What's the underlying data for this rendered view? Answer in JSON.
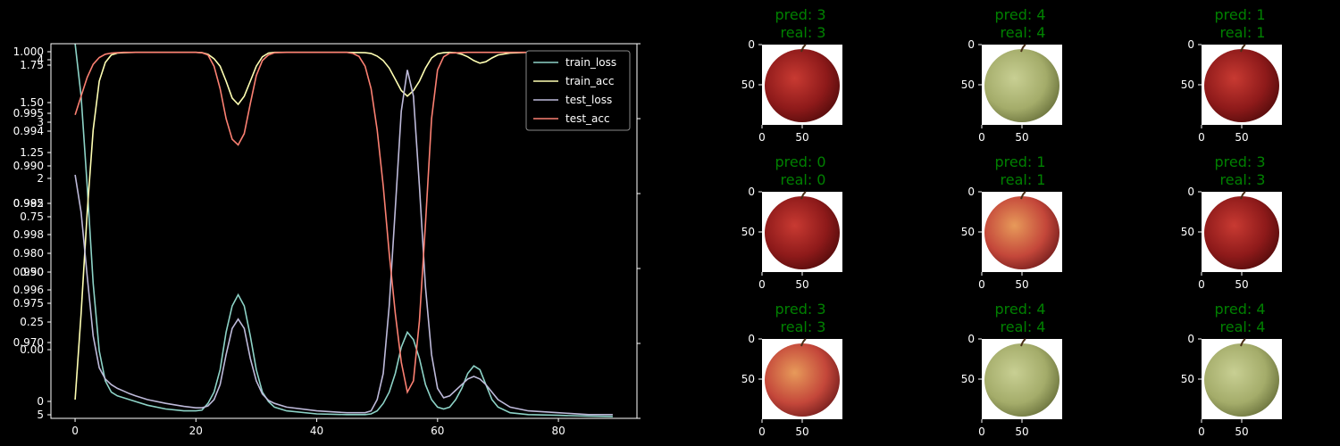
{
  "chart_data": [
    {
      "type": "line",
      "title": "",
      "xlabel": "",
      "ylabel": "",
      "xlim": [
        -4,
        93
      ],
      "xticks": [
        0,
        20,
        40,
        60,
        80
      ],
      "right_axis": {
        "ylim": [
          0.0,
          1.0
        ],
        "ticks": [
          "0.0",
          "0.2",
          "0.4",
          "0.6",
          "0.8",
          "1.0"
        ]
      },
      "overlapping_left_tick_labels": [
        [
          "1.75",
          73.3
        ],
        [
          "1.000",
          0
        ],
        [
          "1.50",
          140.7
        ],
        [
          "0.995",
          0
        ],
        [
          "1.25",
          208
        ],
        [
          "0.990",
          0
        ],
        [
          "0.985",
          0
        ],
        [
          "0.75",
          342.7
        ],
        [
          "0.980",
          0
        ],
        [
          "0.50",
          410
        ],
        [
          "0.975",
          0
        ],
        [
          "0.25",
          477.3
        ],
        [
          "0.970",
          0
        ],
        [
          "0.00",
          544.7
        ],
        [
          "0",
          0
        ],
        [
          "5",
          0
        ],
        [
          "4",
          0
        ],
        [
          "3",
          0
        ],
        [
          "2",
          0
        ],
        [
          "0.998",
          0
        ],
        [
          "0.996",
          0
        ],
        [
          "0.994",
          0
        ],
        [
          "0.992",
          0
        ],
        [
          "0.990",
          0
        ]
      ],
      "legend": {
        "placement": "top-right",
        "entries": [
          "train_loss",
          "train_acc",
          "test_loss",
          "test_acc"
        ]
      },
      "grid": false,
      "series": [
        {
          "name": "train_loss",
          "color": "#8dd3c7",
          "x": [
            0,
            1,
            2,
            3,
            4,
            5,
            6,
            7,
            8,
            10,
            12,
            15,
            18,
            20,
            21,
            22,
            23,
            24,
            25,
            26,
            27,
            28,
            29,
            30,
            31,
            32,
            33,
            35,
            40,
            45,
            48,
            49,
            50,
            51,
            52,
            53,
            54,
            55,
            56,
            57,
            58,
            59,
            60,
            61,
            62,
            63,
            64,
            65,
            66,
            67,
            68,
            69,
            70,
            72,
            75,
            80,
            85,
            89
          ],
          "y": [
            1.0,
            0.86,
            0.62,
            0.36,
            0.18,
            0.1,
            0.07,
            0.06,
            0.055,
            0.045,
            0.035,
            0.025,
            0.02,
            0.02,
            0.022,
            0.04,
            0.07,
            0.13,
            0.23,
            0.3,
            0.33,
            0.3,
            0.22,
            0.13,
            0.07,
            0.045,
            0.03,
            0.02,
            0.012,
            0.01,
            0.01,
            0.012,
            0.02,
            0.04,
            0.07,
            0.12,
            0.19,
            0.23,
            0.21,
            0.16,
            0.09,
            0.05,
            0.03,
            0.025,
            0.03,
            0.05,
            0.08,
            0.12,
            0.14,
            0.13,
            0.09,
            0.05,
            0.03,
            0.015,
            0.01,
            0.008,
            0.006,
            0.005
          ]
        },
        {
          "name": "train_acc",
          "color": "#ffffb3",
          "x": [
            0,
            1,
            2,
            3,
            4,
            5,
            6,
            7,
            8,
            10,
            15,
            20,
            21,
            22,
            23,
            24,
            25,
            26,
            27,
            28,
            29,
            30,
            31,
            32,
            33,
            35,
            40,
            45,
            48,
            49,
            50,
            51,
            52,
            53,
            54,
            55,
            56,
            57,
            58,
            59,
            60,
            61,
            62,
            63,
            64,
            65,
            66,
            67,
            68,
            69,
            70,
            72,
            75,
            80,
            85,
            89
          ],
          "y": [
            0.05,
            0.28,
            0.55,
            0.77,
            0.9,
            0.95,
            0.97,
            0.975,
            0.976,
            0.977,
            0.977,
            0.977,
            0.976,
            0.972,
            0.96,
            0.94,
            0.9,
            0.855,
            0.838,
            0.86,
            0.9,
            0.94,
            0.965,
            0.975,
            0.977,
            0.977,
            0.977,
            0.977,
            0.976,
            0.974,
            0.967,
            0.955,
            0.935,
            0.905,
            0.875,
            0.86,
            0.875,
            0.9,
            0.935,
            0.962,
            0.973,
            0.976,
            0.977,
            0.976,
            0.972,
            0.965,
            0.955,
            0.948,
            0.952,
            0.962,
            0.97,
            0.975,
            0.977,
            0.977,
            0.977,
            0.977
          ]
        },
        {
          "name": "test_loss",
          "color": "#bebada",
          "x": [
            0,
            1,
            2,
            3,
            4,
            5,
            6,
            7,
            8,
            9,
            10,
            12,
            15,
            18,
            20,
            21,
            22,
            23,
            24,
            25,
            26,
            27,
            28,
            29,
            30,
            31,
            32,
            33,
            35,
            40,
            45,
            48,
            49,
            50,
            51,
            52,
            53,
            54,
            55,
            56,
            57,
            58,
            59,
            60,
            61,
            62,
            63,
            64,
            65,
            66,
            67,
            68,
            69,
            70,
            72,
            75,
            80,
            85,
            89
          ],
          "y": [
            0.65,
            0.55,
            0.38,
            0.22,
            0.135,
            0.105,
            0.09,
            0.08,
            0.073,
            0.066,
            0.06,
            0.05,
            0.04,
            0.032,
            0.028,
            0.028,
            0.033,
            0.05,
            0.09,
            0.17,
            0.24,
            0.265,
            0.24,
            0.16,
            0.1,
            0.065,
            0.048,
            0.04,
            0.03,
            0.02,
            0.015,
            0.015,
            0.02,
            0.05,
            0.12,
            0.3,
            0.56,
            0.82,
            0.93,
            0.86,
            0.62,
            0.35,
            0.17,
            0.08,
            0.055,
            0.06,
            0.075,
            0.09,
            0.105,
            0.112,
            0.105,
            0.09,
            0.07,
            0.05,
            0.03,
            0.02,
            0.015,
            0.01,
            0.01
          ]
        },
        {
          "name": "test_acc",
          "color": "#fb8072",
          "x": [
            0,
            1,
            2,
            3,
            4,
            5,
            6,
            7,
            8,
            10,
            15,
            20,
            21,
            22,
            23,
            24,
            25,
            26,
            27,
            28,
            29,
            30,
            31,
            32,
            33,
            35,
            40,
            45,
            46,
            47,
            48,
            49,
            50,
            51,
            52,
            53,
            54,
            55,
            56,
            57,
            58,
            59,
            60,
            61,
            62,
            65,
            70,
            75,
            80,
            85,
            89
          ],
          "y": [
            0.81,
            0.86,
            0.91,
            0.945,
            0.963,
            0.972,
            0.975,
            0.976,
            0.977,
            0.977,
            0.977,
            0.977,
            0.976,
            0.97,
            0.94,
            0.88,
            0.8,
            0.745,
            0.73,
            0.76,
            0.84,
            0.915,
            0.955,
            0.97,
            0.976,
            0.977,
            0.977,
            0.977,
            0.974,
            0.966,
            0.94,
            0.88,
            0.77,
            0.62,
            0.44,
            0.28,
            0.15,
            0.07,
            0.1,
            0.26,
            0.52,
            0.8,
            0.93,
            0.965,
            0.975,
            0.977,
            0.977,
            0.977,
            0.977,
            0.977,
            0.977
          ]
        }
      ]
    }
  ],
  "thumbnails": [
    {
      "pred": "pred: 3",
      "real": "real: 3",
      "apple": "red",
      "title_color": "#008000"
    },
    {
      "pred": "pred: 4",
      "real": "real: 4",
      "apple": "green",
      "title_color": "#008000"
    },
    {
      "pred": "pred: 1",
      "real": "real: 1",
      "apple": "red",
      "title_color": "#008000"
    },
    {
      "pred": "pred: 0",
      "real": "real: 0",
      "apple": "red",
      "title_color": "#008000"
    },
    {
      "pred": "pred: 1",
      "real": "real: 1",
      "apple": "orange",
      "title_color": "#008000"
    },
    {
      "pred": "pred: 3",
      "real": "real: 3",
      "apple": "red",
      "title_color": "#008000"
    },
    {
      "pred": "pred: 3",
      "real": "real: 3",
      "apple": "orange",
      "title_color": "#008000"
    },
    {
      "pred": "pred: 4",
      "real": "real: 4",
      "apple": "green",
      "title_color": "#008000"
    },
    {
      "pred": "pred: 4",
      "real": "real: 4",
      "apple": "green",
      "title_color": "#008000"
    }
  ],
  "thumb_axis": {
    "xticks": [
      "0",
      "50"
    ],
    "yticks": [
      "0",
      "50"
    ]
  }
}
